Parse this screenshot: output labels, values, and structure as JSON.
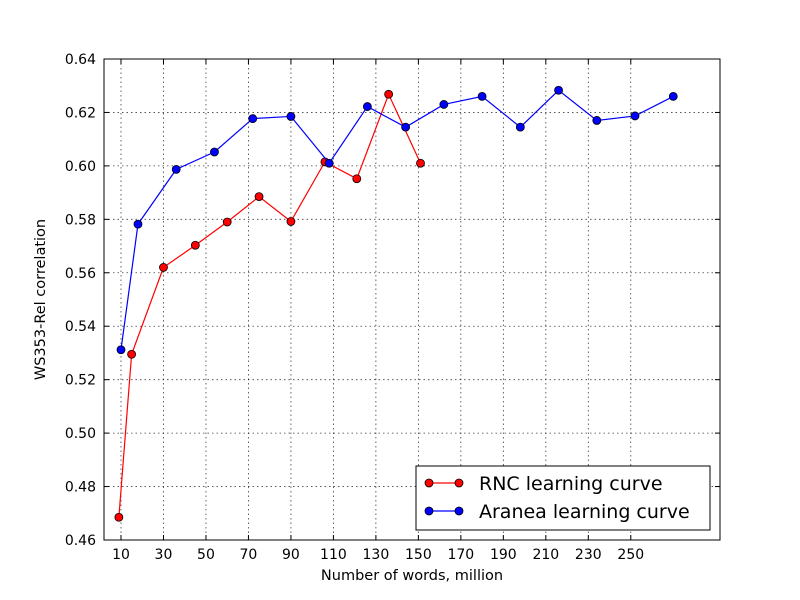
{
  "chart_data": {
    "type": "line",
    "title": "",
    "xlabel": "Number of words, million",
    "ylabel": "WS353-Rel correlation",
    "xlim": [
      2,
      292
    ],
    "ylim": [
      0.46,
      0.64
    ],
    "xticks": [
      10,
      30,
      50,
      70,
      90,
      110,
      130,
      150,
      170,
      190,
      210,
      230,
      250
    ],
    "yticks": [
      0.46,
      0.48,
      0.5,
      0.52,
      0.54,
      0.56,
      0.58,
      0.6,
      0.62,
      0.64
    ],
    "ytick_labels": [
      "0.46",
      "0.48",
      "0.50",
      "0.52",
      "0.54",
      "0.56",
      "0.58",
      "0.60",
      "0.62",
      "0.64"
    ],
    "grid": true,
    "legend_position": "bottom-right",
    "series": [
      {
        "name": "RNC learning curve",
        "color": "#ff0000",
        "x": [
          9,
          15,
          30,
          45,
          60,
          75,
          90,
          106,
          121,
          136,
          151
        ],
        "y": [
          0.4685,
          0.5295,
          0.562,
          0.5703,
          0.579,
          0.5885,
          0.5792,
          0.6015,
          0.5952,
          0.6268,
          0.601
        ]
      },
      {
        "name": "Aranea learning curve",
        "color": "#0000ff",
        "x": [
          10,
          18,
          36,
          54,
          72,
          90,
          108,
          126,
          144,
          162,
          180,
          198,
          216,
          234,
          252,
          270
        ],
        "y": [
          0.5312,
          0.5782,
          0.5987,
          0.6052,
          0.6177,
          0.6185,
          0.601,
          0.6222,
          0.6145,
          0.623,
          0.626,
          0.6145,
          0.6283,
          0.617,
          0.6187,
          0.626
        ]
      }
    ]
  }
}
